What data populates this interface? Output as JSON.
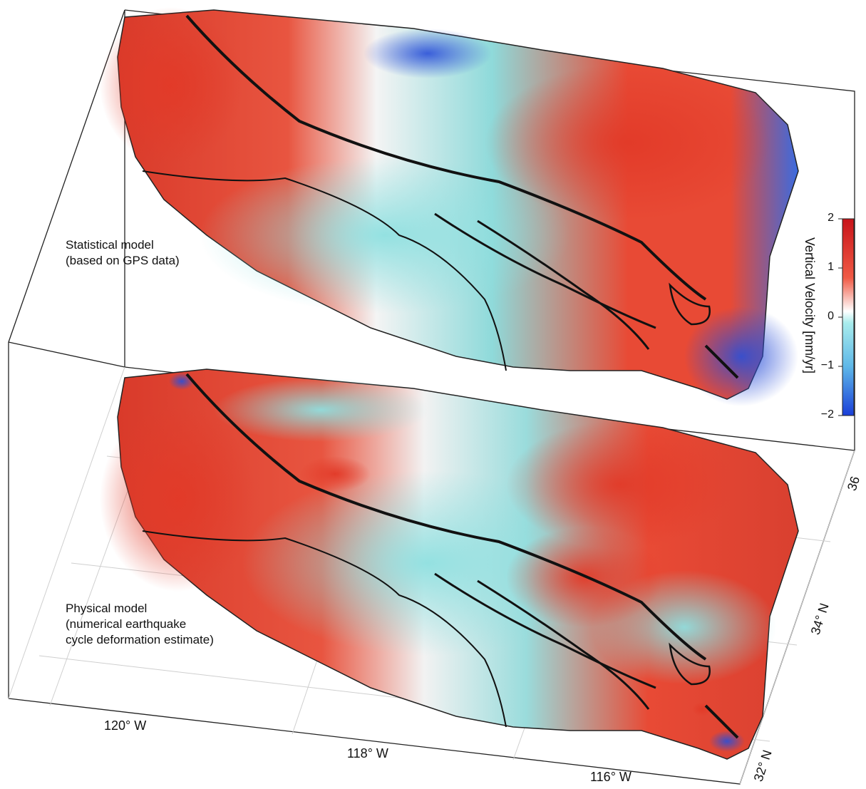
{
  "panels": [
    {
      "label_line1": "Statistical model",
      "label_line2": "(based on GPS data)"
    },
    {
      "label_line1": "Physical model",
      "label_line2": "(numerical earthquake",
      "label_line3": "cycle deformation estimate)"
    }
  ],
  "longitude_ticks": [
    "120° W",
    "118° W",
    "116° W"
  ],
  "latitude_ticks": [
    "36",
    "34° N",
    "32° N"
  ],
  "colorbar": {
    "title": "Vertical Velocity [mm/yr]",
    "ticks": [
      "2",
      "1",
      "0",
      "−1",
      "−2"
    ],
    "colors": [
      "#d7191c",
      "#f05a45",
      "#ffffff",
      "#7fe0e0",
      "#1f4fe0"
    ],
    "range": [
      -2,
      2
    ]
  }
}
